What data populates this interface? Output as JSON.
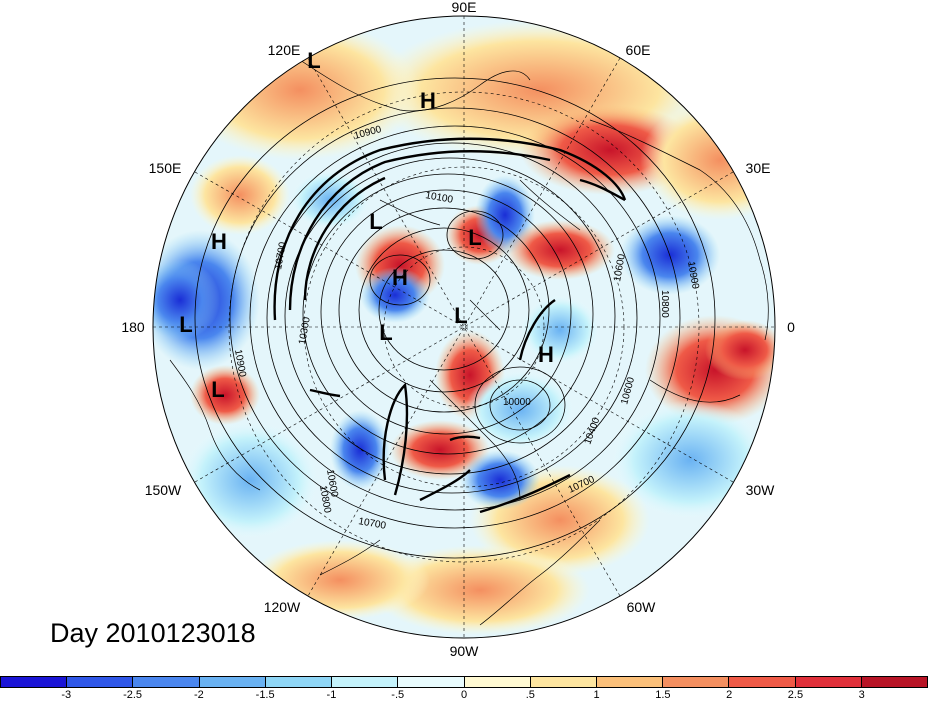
{
  "map": {
    "projection": "north-polar-stereographic",
    "field_shading": "anomaly",
    "contour_field": "geopotential height",
    "longitude_labels": [
      "90E",
      "60E",
      "30E",
      "0",
      "30W",
      "60W",
      "90W",
      "120W",
      "150W",
      "180",
      "150E",
      "120E"
    ],
    "contour_labels": [
      "10900",
      "10100",
      "10700",
      "10300",
      "10900",
      "10600",
      "10800",
      "10900",
      "10000",
      "10400",
      "10600",
      "10700",
      "10600",
      "10800",
      "10700"
    ],
    "pressure_systems": [
      {
        "type": "L",
        "label": "L"
      },
      {
        "type": "H",
        "label": "H"
      },
      {
        "type": "H",
        "label": "H"
      },
      {
        "type": "L",
        "label": "L"
      },
      {
        "type": "L",
        "label": "L"
      },
      {
        "type": "H",
        "label": "H"
      },
      {
        "type": "L",
        "label": "L"
      },
      {
        "type": "L",
        "label": "L"
      },
      {
        "type": "L",
        "label": "L"
      },
      {
        "type": "H",
        "label": "H"
      },
      {
        "type": "L",
        "label": "L"
      }
    ]
  },
  "timestamp_label": "Day 2010123018",
  "colorbar": {
    "colors": [
      "#1a14d6",
      "#2f57e8",
      "#4a86ee",
      "#6ab2f2",
      "#8fd6f6",
      "#c4f2fb",
      "#e8fbfd",
      "#fff9d2",
      "#fde5a0",
      "#fbc07a",
      "#f48f60",
      "#ef5a47",
      "#e0303a",
      "#b81426"
    ],
    "tick_labels": [
      "-3",
      "-2.5",
      "-2",
      "-1.5",
      "-1",
      "-.5",
      "0",
      ".5",
      "1",
      "1.5",
      "2",
      "2.5",
      "3"
    ]
  }
}
